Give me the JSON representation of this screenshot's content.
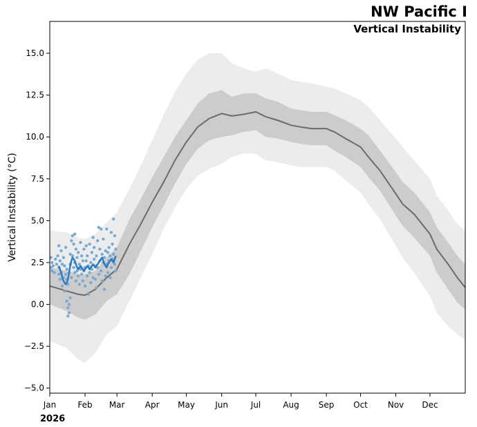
{
  "chart_data": {
    "type": "line",
    "title": "NW Pacific I",
    "subtitle": "Vertical Instability",
    "ylabel": "Vertical Instability (°C)",
    "year_label": "2026",
    "ylim": [
      -5.3,
      16.9
    ],
    "xlim": [
      0,
      365
    ],
    "y_ticks": [
      {
        "value": 15.0,
        "label": "15.0"
      },
      {
        "value": 12.5,
        "label": "12.5"
      },
      {
        "value": 10.0,
        "label": "10.0"
      },
      {
        "value": 7.5,
        "label": "7.5"
      },
      {
        "value": 5.0,
        "label": "5.0"
      },
      {
        "value": 2.5,
        "label": "2.5"
      },
      {
        "value": 0.0,
        "label": "0.0"
      },
      {
        "value": -2.5,
        "label": "−2.5"
      },
      {
        "value": -5.0,
        "label": "−5.0"
      }
    ],
    "x_ticks": [
      {
        "day": 0,
        "label": "Jan"
      },
      {
        "day": 31,
        "label": "Feb"
      },
      {
        "day": 59,
        "label": "Mar"
      },
      {
        "day": 90,
        "label": "Apr"
      },
      {
        "day": 120,
        "label": "May"
      },
      {
        "day": 151,
        "label": "Jun"
      },
      {
        "day": 181,
        "label": "Jul"
      },
      {
        "day": 212,
        "label": "Aug"
      },
      {
        "day": 243,
        "label": "Sep"
      },
      {
        "day": 273,
        "label": "Oct"
      },
      {
        "day": 304,
        "label": "Nov"
      },
      {
        "day": 334,
        "label": "Dec"
      }
    ],
    "colors": {
      "outer_band": "#ececec",
      "inner_band": "#cccccc",
      "climatology": "#6a6a6a",
      "current": "#2c7bbf",
      "scatter": "#7aaad3"
    },
    "climatology": {
      "days": [
        0,
        15,
        25,
        31,
        40,
        50,
        59,
        70,
        80,
        90,
        100,
        110,
        120,
        130,
        140,
        151,
        160,
        170,
        181,
        190,
        200,
        212,
        220,
        230,
        243,
        250,
        260,
        273,
        280,
        290,
        304,
        310,
        320,
        334,
        340,
        350,
        358,
        365
      ],
      "mean": [
        1.1,
        0.8,
        0.6,
        0.55,
        0.9,
        1.6,
        2.1,
        3.6,
        4.8,
        6.1,
        7.3,
        8.6,
        9.7,
        10.6,
        11.1,
        11.4,
        11.25,
        11.35,
        11.5,
        11.2,
        11.0,
        10.7,
        10.6,
        10.5,
        10.5,
        10.3,
        9.9,
        9.4,
        8.8,
        8.0,
        6.6,
        6.0,
        5.4,
        4.2,
        3.3,
        2.4,
        1.6,
        1.0
      ],
      "p25": [
        0.0,
        -0.4,
        -0.8,
        -0.9,
        -0.6,
        0.2,
        0.6,
        1.8,
        3.2,
        4.6,
        5.9,
        7.2,
        8.4,
        9.3,
        9.8,
        10.0,
        10.1,
        10.3,
        10.4,
        10.0,
        9.9,
        9.7,
        9.6,
        9.5,
        9.5,
        9.2,
        8.8,
        8.2,
        7.6,
        6.8,
        5.3,
        4.7,
        4.0,
        2.9,
        1.9,
        0.9,
        0.1,
        -0.3
      ],
      "p75": [
        2.2,
        2.0,
        1.8,
        1.8,
        2.0,
        2.8,
        3.4,
        5.1,
        6.3,
        7.6,
        8.8,
        10.0,
        11.0,
        12.0,
        12.6,
        12.8,
        12.4,
        12.6,
        12.6,
        12.3,
        12.1,
        11.7,
        11.6,
        11.5,
        11.5,
        11.3,
        11.0,
        10.5,
        10.1,
        9.2,
        7.9,
        7.3,
        6.7,
        5.5,
        4.6,
        3.7,
        2.9,
        2.4
      ],
      "p05": [
        -2.2,
        -2.6,
        -3.3,
        -3.5,
        -2.9,
        -1.8,
        -1.3,
        0.2,
        1.6,
        3.0,
        4.5,
        5.8,
        6.9,
        7.7,
        8.1,
        8.4,
        8.8,
        9.0,
        9.0,
        8.6,
        8.5,
        8.3,
        8.2,
        8.2,
        8.2,
        8.0,
        7.4,
        6.7,
        6.0,
        5.1,
        3.5,
        2.8,
        1.9,
        0.5,
        -0.5,
        -1.3,
        -1.8,
        -2.1
      ],
      "p95": [
        4.4,
        4.3,
        4.0,
        3.9,
        4.2,
        4.9,
        5.5,
        6.9,
        8.3,
        9.8,
        11.3,
        12.7,
        13.8,
        14.6,
        15.0,
        15.0,
        14.4,
        14.1,
        13.9,
        14.1,
        13.8,
        13.4,
        13.3,
        13.2,
        13.0,
        12.9,
        12.6,
        12.2,
        11.8,
        11.0,
        9.9,
        9.4,
        8.6,
        7.5,
        6.5,
        5.6,
        4.8,
        4.4
      ]
    },
    "current_series": {
      "days": [
        8,
        9,
        10,
        11,
        12,
        13,
        14,
        15,
        16,
        17,
        18,
        19,
        20,
        21,
        22,
        23,
        24,
        25,
        26,
        27,
        28,
        29,
        30,
        31,
        32,
        33,
        34,
        35,
        36,
        37,
        38,
        39,
        40,
        41,
        42,
        43,
        44,
        45,
        46,
        47,
        48,
        49,
        50,
        51,
        52,
        53,
        54,
        55,
        56,
        57,
        58
      ],
      "values": [
        2.3,
        2.1,
        1.9,
        1.6,
        1.4,
        1.3,
        1.2,
        1.3,
        1.5,
        1.9,
        2.3,
        2.6,
        2.8,
        2.7,
        2.6,
        2.4,
        2.2,
        2.1,
        2.2,
        2.3,
        2.2,
        2.1,
        2.0,
        2.1,
        2.2,
        2.3,
        2.2,
        2.1,
        2.2,
        2.3,
        2.4,
        2.3,
        2.2,
        2.3,
        2.4,
        2.5,
        2.6,
        2.7,
        2.8,
        2.6,
        2.4,
        2.3,
        2.2,
        2.4,
        2.5,
        2.6,
        2.7,
        2.6,
        2.5,
        2.7,
        2.9
      ]
    },
    "scatter_points": [
      [
        1,
        2.2
      ],
      [
        1,
        2.8
      ],
      [
        2,
        2.0
      ],
      [
        2,
        2.5
      ],
      [
        3,
        2.3
      ],
      [
        4,
        1.9
      ],
      [
        5,
        2.7
      ],
      [
        6,
        2.4
      ],
      [
        7,
        2.9
      ],
      [
        8,
        3.5
      ],
      [
        8,
        2.2
      ],
      [
        8,
        1.8
      ],
      [
        9,
        1.5
      ],
      [
        9,
        2.6
      ],
      [
        10,
        3.2
      ],
      [
        10,
        1.9
      ],
      [
        11,
        2.4
      ],
      [
        11,
        1.1
      ],
      [
        12,
        2.8
      ],
      [
        12,
        1.6
      ],
      [
        13,
        0.8
      ],
      [
        13,
        2.3
      ],
      [
        14,
        1.8
      ],
      [
        14,
        3.4
      ],
      [
        15,
        0.2
      ],
      [
        15,
        1.5
      ],
      [
        15,
        2.1
      ],
      [
        16,
        -0.2
      ],
      [
        16,
        -0.7
      ],
      [
        16,
        1.2
      ],
      [
        17,
        0.0
      ],
      [
        17,
        -0.5
      ],
      [
        17,
        1.9
      ],
      [
        18,
        0.4
      ],
      [
        18,
        2.4
      ],
      [
        18,
        3.0
      ],
      [
        19,
        1.6
      ],
      [
        19,
        3.8
      ],
      [
        20,
        2.9
      ],
      [
        20,
        4.1
      ],
      [
        21,
        2.2
      ],
      [
        21,
        3.6
      ],
      [
        22,
        4.2
      ],
      [
        22,
        1.9
      ],
      [
        22,
        2.5
      ],
      [
        23,
        1.4
      ],
      [
        23,
        3.3
      ],
      [
        24,
        2.0
      ],
      [
        24,
        2.8
      ],
      [
        25,
        1.7
      ],
      [
        25,
        3.1
      ],
      [
        26,
        2.4
      ],
      [
        26,
        1.2
      ],
      [
        27,
        3.7
      ],
      [
        27,
        2.1
      ],
      [
        28,
        1.8
      ],
      [
        28,
        2.9
      ],
      [
        29,
        2.6
      ],
      [
        29,
        1.4
      ],
      [
        30,
        3.3
      ],
      [
        30,
        2.0
      ],
      [
        31,
        2.2
      ],
      [
        31,
        1.1
      ],
      [
        32,
        3.5
      ],
      [
        32,
        2.6
      ],
      [
        33,
        1.7
      ],
      [
        33,
        2.9
      ],
      [
        34,
        0.6
      ],
      [
        34,
        2.3
      ],
      [
        35,
        3.6
      ],
      [
        35,
        1.9
      ],
      [
        36,
        2.5
      ],
      [
        36,
        1.3
      ],
      [
        37,
        3.1
      ],
      [
        37,
        2.1
      ],
      [
        38,
        4.0
      ],
      [
        38,
        1.6
      ],
      [
        39,
        2.7
      ],
      [
        39,
        3.4
      ],
      [
        40,
        1.5
      ],
      [
        40,
        2.3
      ],
      [
        41,
        2.9
      ],
      [
        41,
        1.0
      ],
      [
        42,
        2.2
      ],
      [
        42,
        3.8
      ],
      [
        43,
        1.8
      ],
      [
        43,
        4.6
      ],
      [
        44,
        2.6
      ],
      [
        44,
        3.3
      ],
      [
        45,
        4.5
      ],
      [
        45,
        2.0
      ],
      [
        46,
        3.0
      ],
      [
        46,
        1.4
      ],
      [
        47,
        3.9
      ],
      [
        47,
        2.5
      ],
      [
        48,
        0.9
      ],
      [
        48,
        2.8
      ],
      [
        49,
        3.2
      ],
      [
        49,
        1.7
      ],
      [
        50,
        4.5
      ],
      [
        50,
        2.4
      ],
      [
        51,
        3.1
      ],
      [
        51,
        1.9
      ],
      [
        52,
        2.6
      ],
      [
        52,
        3.4
      ],
      [
        53,
        1.6
      ],
      [
        53,
        2.9
      ],
      [
        54,
        4.3
      ],
      [
        54,
        2.2
      ],
      [
        55,
        3.6
      ],
      [
        55,
        2.7
      ],
      [
        56,
        5.1
      ],
      [
        56,
        3.0
      ],
      [
        57,
        4.1
      ],
      [
        57,
        2.4
      ],
      [
        58,
        3.3
      ],
      [
        58,
        2.0
      ]
    ]
  }
}
